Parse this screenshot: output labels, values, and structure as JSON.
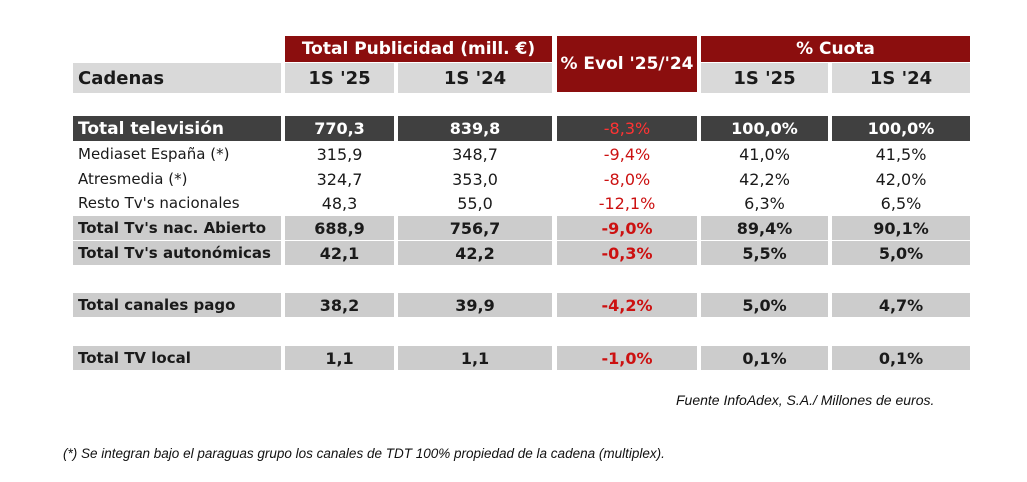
{
  "header": {
    "total_publicidad": "Total Publicidad (mill. €)",
    "evol": "% Evol '25/'24",
    "cuota": "% Cuota",
    "cadenas": "Cadenas",
    "s25_a": "1S '25",
    "s24_a": "1S '24",
    "s25_b": "1S '25",
    "s24_b": "1S '24"
  },
  "rows": [
    {
      "name": "Total televisión",
      "v25": "770,3",
      "v24": "839,8",
      "evol": "-8,3%",
      "c25": "100,0%",
      "c24": "100,0%"
    },
    {
      "name": "Mediaset España (*)",
      "v25": "315,9",
      "v24": "348,7",
      "evol": "-9,4%",
      "c25": "41,0%",
      "c24": "41,5%"
    },
    {
      "name": "Atresmedia (*)",
      "v25": "324,7",
      "v24": "353,0",
      "evol": "-8,0%",
      "c25": "42,2%",
      "c24": "42,0%"
    },
    {
      "name": "Resto Tv's nacionales",
      "v25": "48,3",
      "v24": "55,0",
      "evol": "-12,1%",
      "c25": "6,3%",
      "c24": "6,5%"
    },
    {
      "name": "Total Tv's nac. Abierto",
      "v25": "688,9",
      "v24": "756,7",
      "evol": "-9,0%",
      "c25": "89,4%",
      "c24": "90,1%"
    },
    {
      "name": "Total Tv's autonómicas",
      "v25": "42,1",
      "v24": "42,2",
      "evol": "-0,3%",
      "c25": "5,5%",
      "c24": "5,0%"
    },
    {
      "name": "Total canales pago",
      "v25": "38,2",
      "v24": "39,9",
      "evol": "-4,2%",
      "c25": "5,0%",
      "c24": "4,7%"
    },
    {
      "name": "Total TV local",
      "v25": "1,1",
      "v24": "1,1",
      "evol": "-1,0%",
      "c25": "0,1%",
      "c24": "0,1%"
    }
  ],
  "source": "Fuente InfoAdex, S.A./ Millones de euros.",
  "footnote": "(*) Se integran  bajo el paraguas  grupo los canales de TDT 100% propiedad  de la cadena (multiplex).",
  "colors": {
    "header_red": "#8b0e0e",
    "negative": "#cc1111",
    "dark_row": "#404040",
    "grey_row": "#cccccc"
  }
}
